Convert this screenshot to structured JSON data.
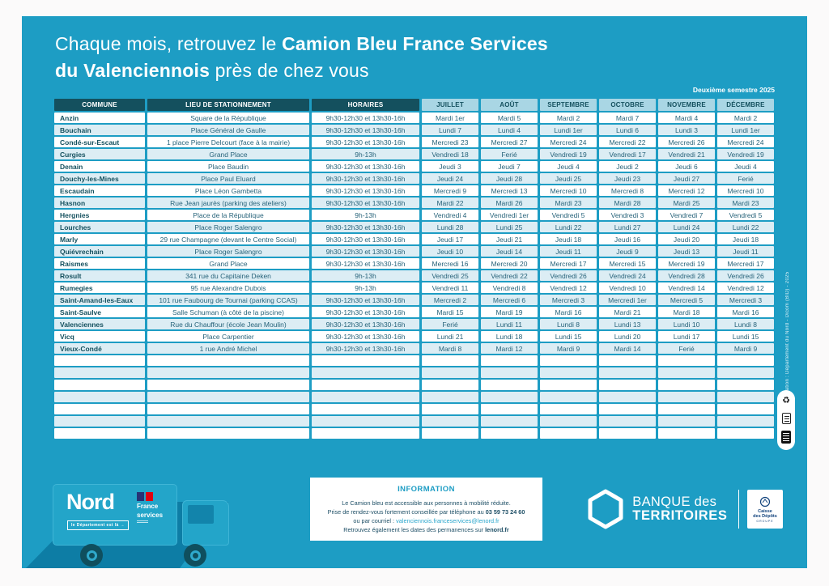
{
  "colors": {
    "panel_cyan": "#1d9dc4",
    "header_dark_teal": "#14505e",
    "month_header_blue": "#a9d6e4",
    "row_alt_blue": "#dcedf4",
    "body_text_teal": "#27637a",
    "shadow_teal": "#0d7da5",
    "link_cyan": "#2ba7cd",
    "flag_blue": "#273375",
    "flag_red": "#e1000f"
  },
  "title": {
    "line1_regular": "Chaque mois, retrouvez le ",
    "line1_bold": "Camion Bleu France Services",
    "line2_bold": "du Valenciennois",
    "line2_regular": " près de chez vous"
  },
  "semester_label": "Deuxième semestre 2025",
  "credit_vertical": "Création : Département du Nord - Dicom (BID) - 2025",
  "table": {
    "headers": [
      "COMMUNE",
      "LIEU DE STATIONNEMENT",
      "HORAIRES",
      "JUILLET",
      "AOÛT",
      "SEPTEMBRE",
      "OCTOBRE",
      "NOVEMBRE",
      "DÉCEMBRE"
    ],
    "empty_row_count": 7,
    "rows": [
      {
        "commune": "Anzin",
        "lieu": "Square de la République",
        "horaires": "9h30-12h30 et 13h30-16h",
        "months": [
          "Mardi 1er",
          "Mardi 5",
          "Mardi 2",
          "Mardi 7",
          "Mardi 4",
          "Mardi 2"
        ]
      },
      {
        "commune": "Bouchain",
        "lieu": "Place Général de Gaulle",
        "horaires": "9h30-12h30 et 13h30-16h",
        "months": [
          "Lundi 7",
          "Lundi 4",
          "Lundi 1er",
          "Lundi 6",
          "Lundi 3",
          "Lundi 1er"
        ]
      },
      {
        "commune": "Condé-sur-Escaut",
        "lieu": "1 place Pierre Delcourt (face à la mairie)",
        "horaires": "9h30-12h30 et 13h30-16h",
        "months": [
          "Mercredi 23",
          "Mercredi 27",
          "Mercredi 24",
          "Mercredi 22",
          "Mercredi 26",
          "Mercredi 24"
        ]
      },
      {
        "commune": "Curgies",
        "lieu": "Grand Place",
        "horaires": "9h-13h",
        "months": [
          "Vendredi 18",
          "Ferié",
          "Vendredi 19",
          "Vendredi 17",
          "Vendredi 21",
          "Vendredi 19"
        ]
      },
      {
        "commune": "Denain",
        "lieu": "Place Baudin",
        "horaires": "9h30-12h30 et 13h30-16h",
        "months": [
          "Jeudi 3",
          "Jeudi 7",
          "Jeudi 4",
          "Jeudi 2",
          "Jeudi 6",
          "Jeudi 4"
        ]
      },
      {
        "commune": "Douchy-les-Mines",
        "lieu": "Place Paul Eluard",
        "horaires": "9h30-12h30 et 13h30-16h",
        "months": [
          "Jeudi 24",
          "Jeudi 28",
          "Jeudi 25",
          "Jeudi 23",
          "Jeudi 27",
          "Ferié"
        ]
      },
      {
        "commune": "Escaudain",
        "lieu": "Place Léon Gambetta",
        "horaires": "9h30-12h30 et 13h30-16h",
        "months": [
          "Mercredi 9",
          "Mercredi 13",
          "Mercredi 10",
          "Mercredi 8",
          "Mercredi 12",
          "Mercredi 10"
        ]
      },
      {
        "commune": "Hasnon",
        "lieu": "Rue Jean jaurès (parking des ateliers)",
        "horaires": "9h30-12h30 et 13h30-16h",
        "months": [
          "Mardi 22",
          "Mardi 26",
          "Mardi 23",
          "Mardi 28",
          "Mardi 25",
          "Mardi 23"
        ]
      },
      {
        "commune": "Hergnies",
        "lieu": "Place de la République",
        "horaires": "9h-13h",
        "months": [
          "Vendredi 4",
          "Vendredi 1er",
          "Vendredi 5",
          "Vendredi 3",
          "Vendredi 7",
          "Vendredi 5"
        ]
      },
      {
        "commune": "Lourches",
        "lieu": "Place Roger Salengro",
        "horaires": "9h30-12h30 et 13h30-16h",
        "months": [
          "Lundi 28",
          "Lundi 25",
          "Lundi 22",
          "Lundi 27",
          "Lundi 24",
          "Lundi 22"
        ]
      },
      {
        "commune": "Marly",
        "lieu": "29 rue Champagne (devant le Centre Social)",
        "horaires": "9h30-12h30 et 13h30-16h",
        "months": [
          "Jeudi 17",
          "Jeudi 21",
          "Jeudi 18",
          "Jeudi 16",
          "Jeudi 20",
          "Jeudi 18"
        ]
      },
      {
        "commune": "Quiévrechain",
        "lieu": "Place Roger Salengro",
        "horaires": "9h30-12h30 et 13h30-16h",
        "months": [
          "Jeudi 10",
          "Jeudi 14",
          "Jeudi 11",
          "Jeudi 9",
          "Jeudi 13",
          "Jeudi 11"
        ]
      },
      {
        "commune": "Raismes",
        "lieu": "Grand Place",
        "horaires": "9h30-12h30 et 13h30-16h",
        "months": [
          "Mercredi 16",
          "Mercredi 20",
          "Mercredi 17",
          "Mercredi 15",
          "Mercredi 19",
          "Mercredi 17"
        ]
      },
      {
        "commune": "Rosult",
        "lieu": "341 rue du Capitaine Deken",
        "horaires": "9h-13h",
        "months": [
          "Vendredi 25",
          "Vendredi 22",
          "Vendredi 26",
          "Vendredi 24",
          "Vendredi 28",
          "Vendredi 26"
        ]
      },
      {
        "commune": "Rumegies",
        "lieu": "95 rue Alexandre Dubois",
        "horaires": "9h-13h",
        "months": [
          "Vendredi 11",
          "Vendredi 8",
          "Vendredi 12",
          "Vendredi 10",
          "Vendredi 14",
          "Vendredi 12"
        ]
      },
      {
        "commune": "Saint-Amand-les-Eaux",
        "lieu": "101 rue Faubourg de Tournai (parking CCAS)",
        "horaires": "9h30-12h30 et 13h30-16h",
        "months": [
          "Mercredi 2",
          "Mercredi 6",
          "Mercredi 3",
          "Mercredi 1er",
          "Mercredi 5",
          "Mercredi 3"
        ]
      },
      {
        "commune": "Saint-Saulve",
        "lieu": "Salle Schuman (à côté de la piscine)",
        "horaires": "9h30-12h30 et 13h30-16h",
        "months": [
          "Mardi 15",
          "Mardi 19",
          "Mardi 16",
          "Mardi 21",
          "Mardi 18",
          "Mardi 16"
        ]
      },
      {
        "commune": "Valenciennes",
        "lieu": "Rue du Chauffour (école Jean Moulin)",
        "horaires": "9h30-12h30 et 13h30-16h",
        "months": [
          "Ferié",
          "Lundi 11",
          "Lundi 8",
          "Lundi 13",
          "Lundi 10",
          "Lundi 8"
        ]
      },
      {
        "commune": "Vicq",
        "lieu": "Place Carpentier",
        "horaires": "9h30-12h30 et 13h30-16h",
        "months": [
          "Lundi 21",
          "Lundi 18",
          "Lundi 15",
          "Lundi 20",
          "Lundi 17",
          "Lundi 15"
        ]
      },
      {
        "commune": "Vieux-Condé",
        "lieu": "1 rue André Michel",
        "horaires": "9h30-12h30 et 13h30-16h",
        "months": [
          "Mardi 8",
          "Mardi 12",
          "Mardi 9",
          "Mardi 14",
          "Ferié",
          "Mardi 9"
        ]
      }
    ]
  },
  "info": {
    "title": "INFORMATION",
    "line1": "Le Camion bleu est accessible aux personnes à mobilité réduite.",
    "line2_text": "Prise de rendez-vous fortement conseillée par téléphone au",
    "line2_strong": "03 59 73 24 60",
    "line3_text": "ou par courriel :",
    "line3_link": "valenciennois.franceservices@lenord.fr",
    "line4_text": "Retrouvez également les dates des permanences sur",
    "line4_strong": "lenord.fr"
  },
  "truck": {
    "brand": "Nord",
    "brand_tagline": "le Département est là →",
    "fs_line1": "France",
    "fs_line2": "services"
  },
  "banque": {
    "line1": "BANQUE des",
    "line2": "TERRITOIRES",
    "caisse_line1": "Caisse",
    "caisse_line2": "des Dépôts",
    "caisse_groupe": "GROUPE"
  }
}
